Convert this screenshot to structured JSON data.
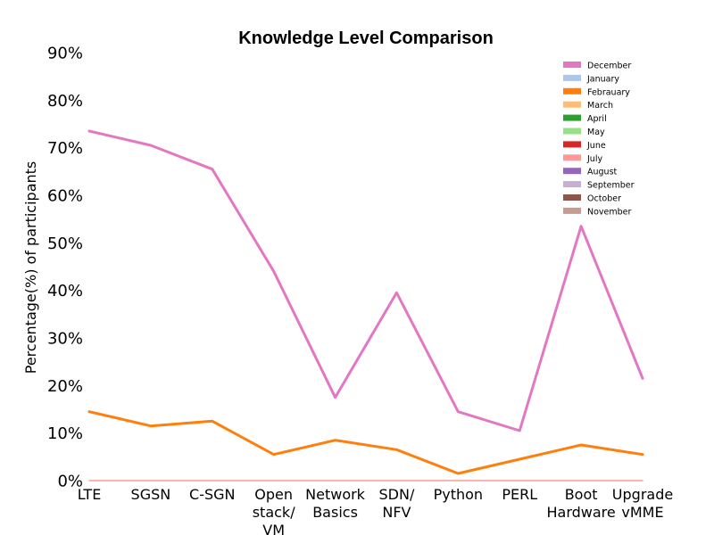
{
  "chart_data": {
    "type": "line",
    "title": "Knowledge Level Comparison",
    "xlabel": "",
    "ylabel": "Percentage(%) of participants",
    "ylim": [
      0,
      90
    ],
    "yticks": [
      0,
      10,
      20,
      30,
      40,
      50,
      60,
      70,
      80,
      90
    ],
    "ytick_labels": [
      "0%",
      "10%",
      "20%",
      "30%",
      "40%",
      "50%",
      "60%",
      "70%",
      "80%",
      "90%"
    ],
    "categories": [
      [
        "LTE"
      ],
      [
        "SGSN"
      ],
      [
        "C-SGN"
      ],
      [
        "Open",
        "stack/",
        "VM"
      ],
      [
        "Network",
        "Basics"
      ],
      [
        "SDN/",
        "NFV"
      ],
      [
        "Python"
      ],
      [
        "PERL"
      ],
      [
        "Boot",
        "Hardware"
      ],
      [
        "Upgrade",
        "vMME"
      ]
    ],
    "grid": false,
    "legend_position": "top-right",
    "series": [
      {
        "name": "December",
        "color": "#e377c2",
        "values": [
          73.5,
          70.5,
          65.5,
          44,
          17.5,
          39.5,
          14.5,
          10.5,
          53.5,
          21.5
        ]
      },
      {
        "name": "January",
        "color": "#aec7e8",
        "values": null
      },
      {
        "name": "Febrauary",
        "color": "#ff7f0e",
        "values": [
          14.5,
          11.5,
          12.5,
          5.5,
          8.5,
          6.5,
          1.5,
          4.5,
          7.5,
          5.5
        ]
      },
      {
        "name": "March",
        "color": "#ffbb78",
        "values": null
      },
      {
        "name": "April",
        "color": "#2ca02c",
        "values": null
      },
      {
        "name": "May",
        "color": "#98df8a",
        "values": null
      },
      {
        "name": "June",
        "color": "#d62728",
        "values": null
      },
      {
        "name": "July",
        "color": "#ff9896",
        "values": [
          0,
          0,
          0,
          0,
          0,
          0,
          0,
          0,
          0,
          0
        ]
      },
      {
        "name": "August",
        "color": "#9467bd",
        "values": null
      },
      {
        "name": "September",
        "color": "#c5b0d5",
        "values": null
      },
      {
        "name": "October",
        "color": "#8c564b",
        "values": null
      },
      {
        "name": "November",
        "color": "#c49c94",
        "values": null
      }
    ]
  }
}
